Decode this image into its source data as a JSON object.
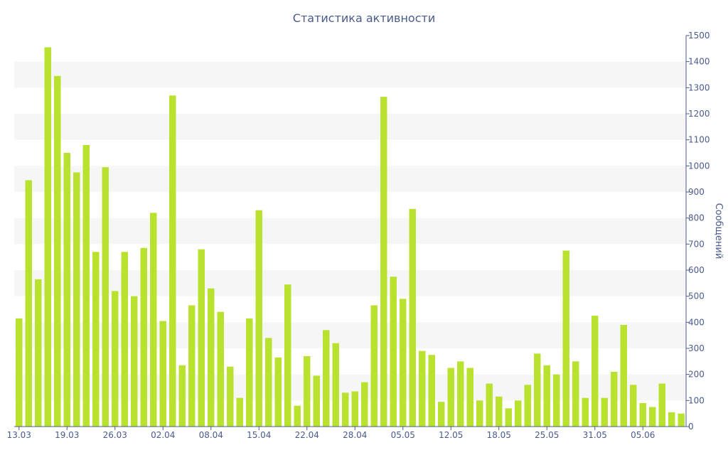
{
  "chart_data": {
    "type": "bar",
    "title": "Статистика активности",
    "xlabel": "",
    "ylabel": "Сообщений",
    "ylim": [
      0,
      1500
    ],
    "y_ticks": [
      0,
      100,
      200,
      300,
      400,
      500,
      600,
      700,
      800,
      900,
      1000,
      1100,
      1200,
      1300,
      1400,
      1500
    ],
    "x_tick_labels": [
      "13.03",
      "19.03",
      "26.03",
      "02.04",
      "08.04",
      "15.04",
      "22.04",
      "28.04",
      "05.05",
      "12.05",
      "18.05",
      "25.05",
      "31.05",
      "05.06"
    ],
    "x_tick_bar_index": [
      0,
      5,
      10,
      15,
      20,
      25,
      30,
      35,
      40,
      45,
      50,
      55,
      60,
      65
    ],
    "grid": "alternating horizontal bands",
    "bar_color": "#b8e22e",
    "values": [
      415,
      945,
      565,
      1455,
      1345,
      1050,
      975,
      1080,
      670,
      995,
      520,
      670,
      500,
      685,
      820,
      405,
      1270,
      235,
      465,
      680,
      530,
      440,
      230,
      110,
      415,
      830,
      340,
      265,
      545,
      80,
      270,
      195,
      370,
      320,
      130,
      135,
      170,
      465,
      1265,
      575,
      490,
      835,
      290,
      275,
      95,
      225,
      250,
      225,
      100,
      165,
      115,
      70,
      100,
      160,
      280,
      235,
      200,
      675,
      250,
      110,
      425,
      110,
      210,
      390,
      160,
      90,
      75,
      165,
      55,
      50
    ]
  }
}
